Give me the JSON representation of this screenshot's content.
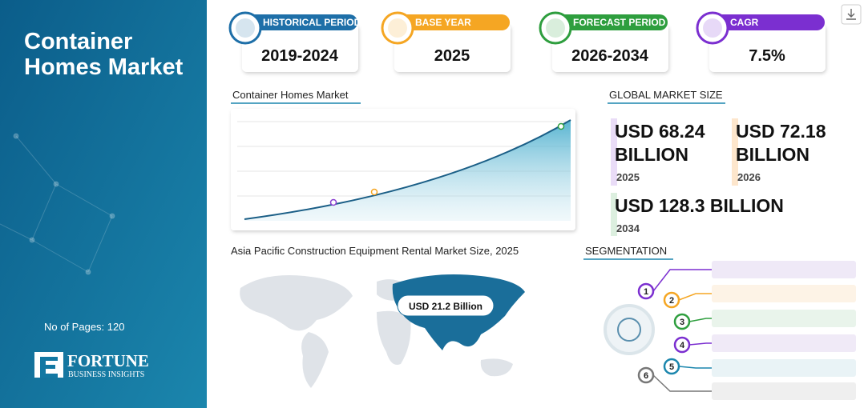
{
  "sidebar": {
    "title_lines": [
      "Container",
      "Homes Market"
    ],
    "pages": "No of Pages: 120",
    "logo": {
      "name": "FORTUNE",
      "tagline": "BUSINESS INSIGHTS"
    }
  },
  "periods": [
    {
      "label": "HISTORICAL PERIOD",
      "value": "2019-2024"
    },
    {
      "label": "BASE YEAR",
      "value": "2025"
    },
    {
      "label": "FORECAST PERIOD",
      "value": "2026-2034"
    },
    {
      "label": "CAGR",
      "value": "7.5%"
    }
  ],
  "market_chart": {
    "title": "Container Homes Market"
  },
  "global_market_size": {
    "title": "GLOBAL MARKET SIZE",
    "items": [
      {
        "lines": [
          "USD 68.24",
          "BILLION"
        ],
        "year": "2025"
      },
      {
        "lines": [
          "USD 72.18",
          "BILLION"
        ],
        "year": "2026"
      },
      {
        "lines": [
          "USD 128.3 BILLION"
        ],
        "year": "2034"
      }
    ]
  },
  "regional": {
    "title": "Asia Pacific Construction Equipment Rental Market Size, 2025",
    "callout": "USD 21.2 Billion"
  },
  "segmentation": {
    "title": "SEGMENTATION",
    "markers": [
      "1",
      "2",
      "3",
      "4",
      "5",
      "6"
    ]
  }
}
